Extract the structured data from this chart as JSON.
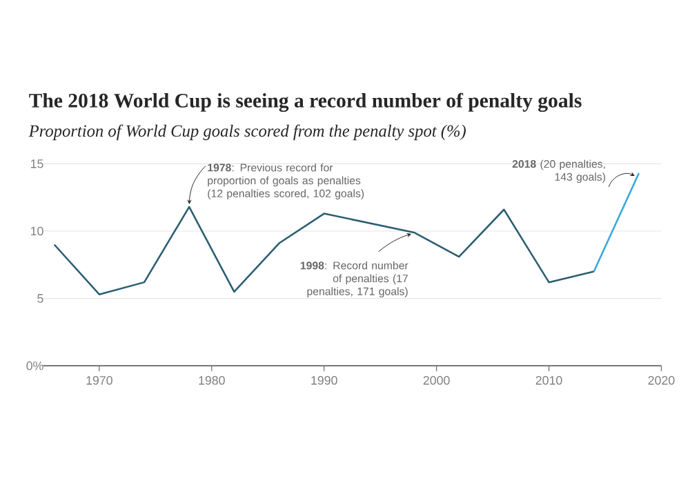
{
  "chart_data": {
    "type": "line",
    "title": "The 2018 World Cup is seeing a record number of penalty goals",
    "subtitle": "Proportion of World Cup goals scored from the penalty spot (%)",
    "series": [
      {
        "color": "#2b5d71",
        "x": [
          1966,
          1970,
          1974,
          1978,
          1982,
          1986,
          1990,
          1994,
          1998,
          2002,
          2006,
          2010,
          2014
        ],
        "values": [
          9.0,
          5.3,
          6.2,
          11.8,
          5.5,
          9.1,
          11.3,
          10.6,
          9.9,
          8.1,
          11.6,
          6.2,
          7.0
        ]
      },
      {
        "color": "#35a8d8",
        "x": [
          2014,
          2018
        ],
        "values": [
          7.0,
          14.3
        ]
      }
    ],
    "xlim": [
      1965,
      2020
    ],
    "xticks": [
      1970,
      1980,
      1990,
      2000,
      2010,
      2020
    ],
    "ylim": [
      0,
      15
    ],
    "yticks": [
      {
        "value": 0,
        "label": "0%"
      },
      5,
      10,
      15
    ],
    "grid": "y",
    "annotations": [
      {
        "text": "**1978**: Previous record for proportion of goals as penalties (12 penalties scored, 102 goals)",
        "x": 1978,
        "y": 11.8
      },
      {
        "text": "**1998**: Record number of penalties (17 penalties, 171 goals)",
        "x": 1998,
        "y": 9.9
      },
      {
        "text": "**2018** (20 penalties, 143 goals)",
        "x": 2018,
        "y": 14.3
      }
    ]
  }
}
